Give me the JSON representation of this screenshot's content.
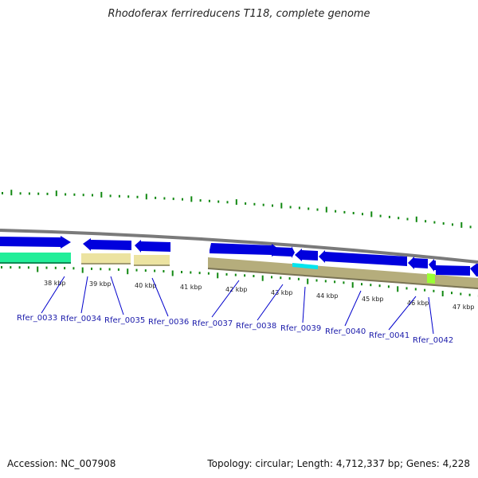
{
  "title": "Rhodoferax ferrireducens T118, complete genome",
  "accession": "Accession: NC_007908",
  "summary": "Topology: circular; Length: 4,712,337 bp; Genes: 4,228",
  "colors": {
    "backbone": "#7a7a7a",
    "cds": "#0000dd",
    "tan": "#b5ad7c",
    "light_tan": "#ece3a1",
    "mint": "#22ee99",
    "cyan": "#00e5ee",
    "lime": "#99ff33",
    "label": "#1a1aaa",
    "ticks": "#118811"
  },
  "kbp_labels": [
    "38 kbp",
    "39 kbp",
    "40 kbp",
    "41 kbp",
    "42 kbp",
    "43 kbp",
    "44 kbp",
    "45 kbp",
    "46 kbp",
    "47 kbp"
  ],
  "gene_labels": [
    "Rfer_0033",
    "Rfer_0034",
    "Rfer_0035",
    "Rfer_0036",
    "Rfer_0037",
    "Rfer_0038",
    "Rfer_0039",
    "Rfer_0040",
    "Rfer_0041",
    "Rfer_0042"
  ]
}
